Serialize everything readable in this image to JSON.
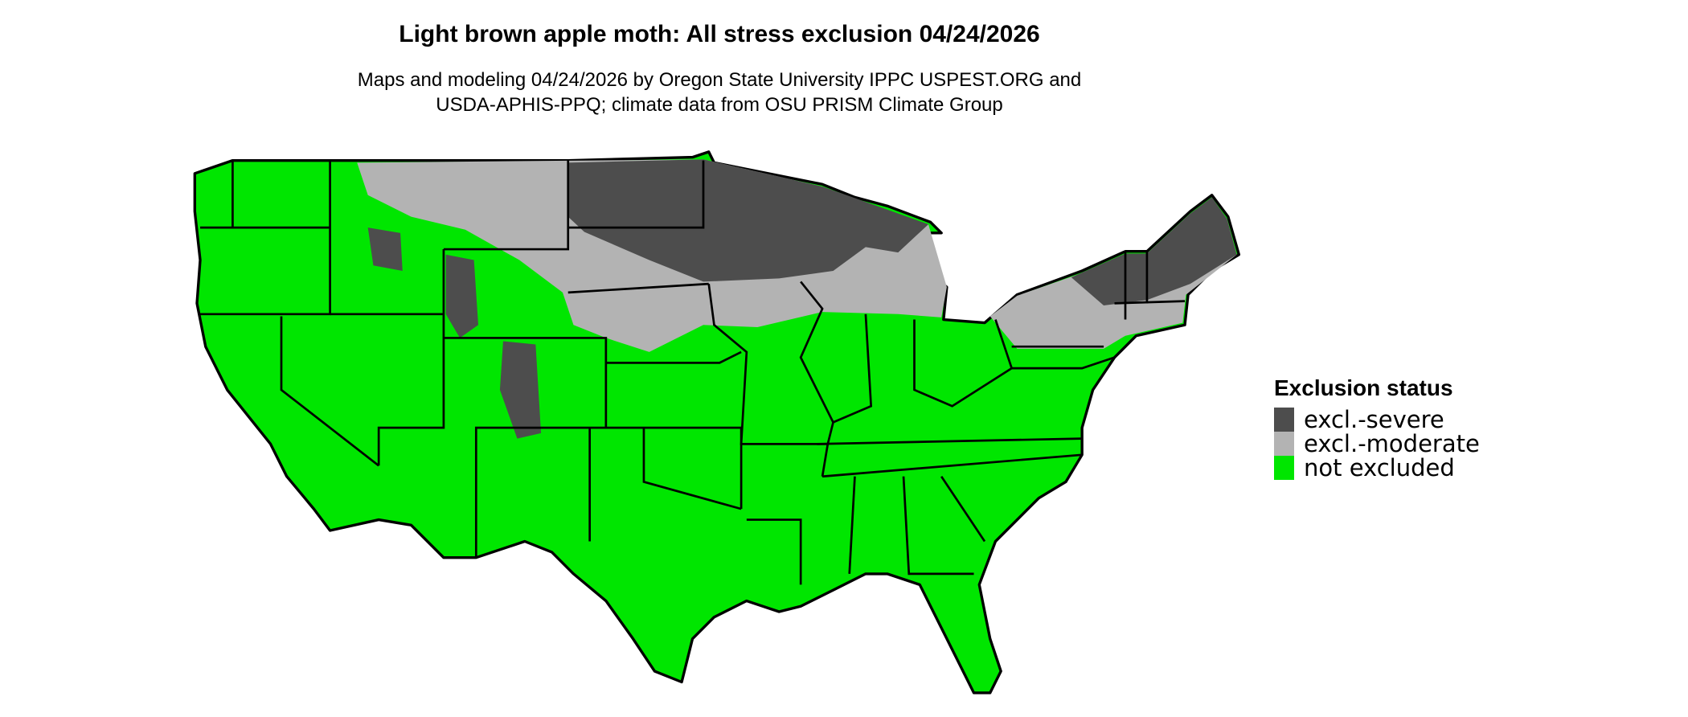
{
  "title": "Light brown apple moth: All stress exclusion 04/24/2026",
  "subtitle_line1": "Maps and modeling 04/24/2026 by Oregon State University IPPC USPEST.ORG and",
  "subtitle_line2": "USDA-APHIS-PPQ; climate data from OSU PRISM Climate Group",
  "legend": {
    "title": "Exclusion status",
    "items": [
      {
        "label": "excl.-severe",
        "color": "#4d4d4d"
      },
      {
        "label": "excl.-moderate",
        "color": "#b3b3b3"
      },
      {
        "label": "not excluded",
        "color": "#00e600"
      }
    ]
  },
  "map": {
    "region": "Contiguous United States",
    "border_color": "#000000"
  }
}
